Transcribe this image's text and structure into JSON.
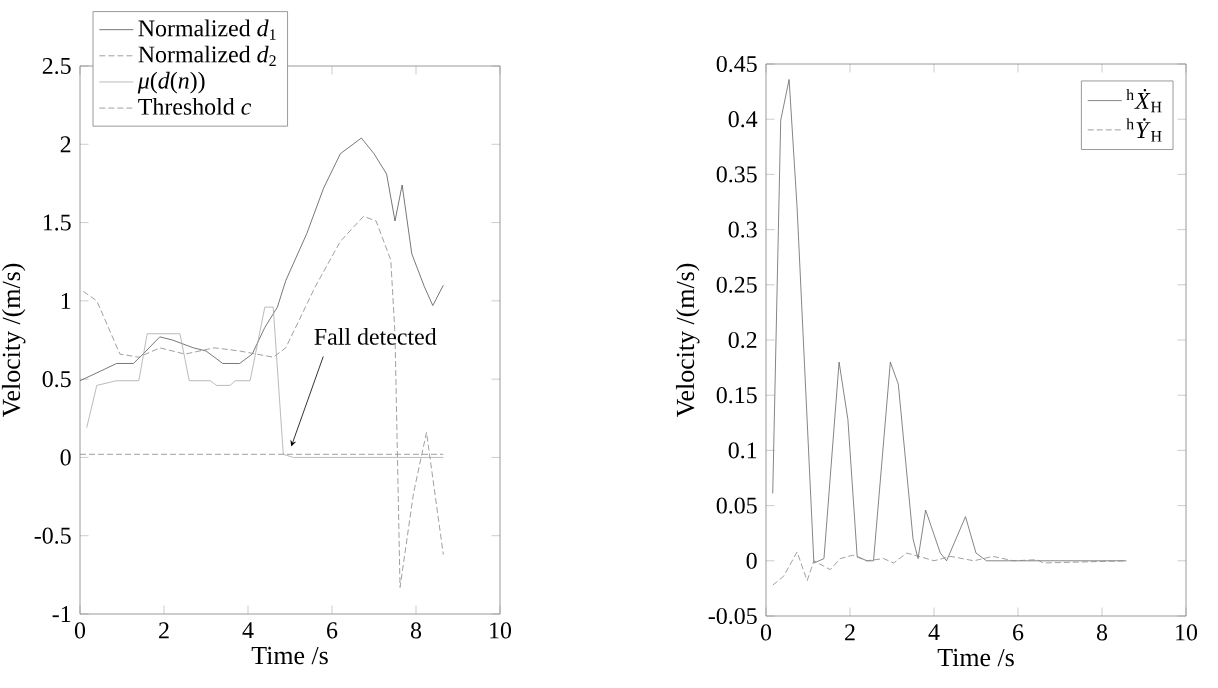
{
  "chart_data": [
    {
      "type": "line",
      "xlabel": "Time /s",
      "ylabel": "Velocity /(m/s)",
      "xlim": [
        0,
        10
      ],
      "ylim": [
        -1,
        2.5
      ],
      "xticks": [
        0,
        2,
        4,
        6,
        8,
        10
      ],
      "yticks": [
        -1,
        -0.5,
        0,
        0.5,
        1,
        1.5,
        2,
        2.5
      ],
      "legend": "top left",
      "annotations": [
        {
          "text": "Fall detected",
          "x": 5.03,
          "y": 0.07
        }
      ],
      "series": [
        {
          "name": "Normalized *d*$_{1}$",
          "color": "#555555",
          "line_style": "solid",
          "x": [
            0,
            0.48,
            0.87,
            1.27,
            1.5,
            1.9,
            2.2,
            2.7,
            3.0,
            3.4,
            3.8,
            4.1,
            4.4,
            4.7,
            4.9,
            5.4,
            5.8,
            6.2,
            6.7,
            7.0,
            7.3,
            7.5,
            7.67,
            7.9,
            8.2,
            8.4,
            8.65
          ],
          "values": [
            0.49,
            0.55,
            0.6,
            0.6,
            0.66,
            0.77,
            0.75,
            0.7,
            0.68,
            0.6,
            0.6,
            0.66,
            0.83,
            0.96,
            1.13,
            1.43,
            1.72,
            1.94,
            2.04,
            1.94,
            1.81,
            1.51,
            1.74,
            1.3,
            1.09,
            0.97,
            1.1
          ]
        },
        {
          "name": "Normalized *d*$_{2}$",
          "color": "#888888",
          "line_style": "dashed",
          "x": [
            0.08,
            0.4,
            0.95,
            1.4,
            1.9,
            2.5,
            3.2,
            3.8,
            4.6,
            4.9,
            5.6,
            6.2,
            6.75,
            7.05,
            7.4,
            7.5,
            7.62,
            7.94,
            8.25,
            8.65
          ],
          "values": [
            1.06,
            1.0,
            0.66,
            0.64,
            0.7,
            0.66,
            0.7,
            0.68,
            0.64,
            0.7,
            1.09,
            1.38,
            1.54,
            1.51,
            1.26,
            0.79,
            -0.83,
            -0.23,
            0.16,
            -0.62
          ]
        },
        {
          "name": "*μ*(*d*(*n*))",
          "color": "#aaaaaa",
          "line_style": "solid",
          "x": [
            0.16,
            0.4,
            0.87,
            1.4,
            1.6,
            2.38,
            2.6,
            3.1,
            3.25,
            3.57,
            3.7,
            4.05,
            4.4,
            4.6,
            4.84,
            5.08,
            8.65
          ],
          "values": [
            0.19,
            0.46,
            0.49,
            0.49,
            0.79,
            0.79,
            0.49,
            0.49,
            0.46,
            0.46,
            0.49,
            0.49,
            0.96,
            0.96,
            0.02,
            0,
            0
          ]
        },
        {
          "name": "Threshold *c*",
          "color": "#888888",
          "line_style": "dashed",
          "x": [
            0,
            8.65
          ],
          "values": [
            0.02,
            0.02
          ]
        }
      ]
    },
    {
      "type": "line",
      "xlabel": "Time /s",
      "ylabel": "Velocity /(m/s)",
      "xlim": [
        0,
        10
      ],
      "ylim": [
        -0.05,
        0.45
      ],
      "xticks": [
        0,
        2,
        4,
        6,
        8,
        10
      ],
      "yticks": [
        -0.05,
        0,
        0.05,
        0.1,
        0.15,
        0.2,
        0.25,
        0.3,
        0.35,
        0.4,
        0.45
      ],
      "legend": "top right",
      "series": [
        {
          "name": "$^{h}$*Ẋ*$_{H}$",
          "color": "#666666",
          "line_style": "solid",
          "x": [
            0.16,
            0.35,
            0.55,
            0.74,
            1.14,
            1.38,
            1.74,
            1.95,
            2.17,
            2.4,
            2.56,
            2.96,
            3.15,
            3.5,
            3.62,
            3.8,
            4.15,
            4.3,
            4.75,
            5.0,
            5.25,
            8.58
          ],
          "values": [
            0.061,
            0.399,
            0.436,
            0.32,
            -0.002,
            0.002,
            0.18,
            0.128,
            0.004,
            0,
            0,
            0.18,
            0.16,
            0.02,
            0.002,
            0.046,
            0.007,
            0,
            0.04,
            0.007,
            0,
            0
          ]
        },
        {
          "name": "$^{h}$*Ẏ*$_{H}$",
          "color": "#888888",
          "line_style": "dashed",
          "x": [
            0.16,
            0.42,
            0.74,
            0.98,
            1.14,
            1.38,
            1.53,
            1.77,
            2.06,
            2.4,
            2.8,
            3.04,
            3.35,
            3.64,
            4.0,
            4.4,
            4.95,
            5.4,
            5.9,
            6.45,
            6.6,
            8.58
          ],
          "values": [
            -0.022,
            -0.014,
            0.008,
            -0.018,
            0,
            -0.005,
            -0.008,
            0.002,
            0.005,
            0,
            0.002,
            -0.002,
            0.007,
            0.004,
            0,
            0.004,
            0,
            0.004,
            0,
            0.001,
            -0.002,
            0
          ]
        }
      ]
    }
  ]
}
